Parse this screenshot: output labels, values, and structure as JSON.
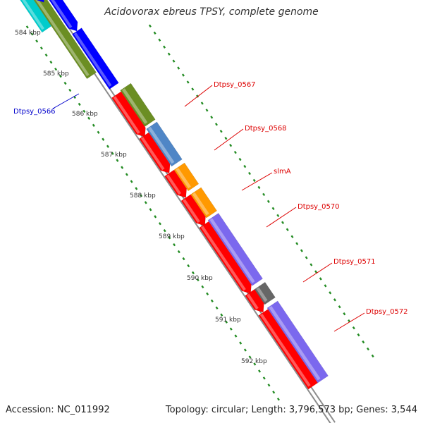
{
  "title": "Acidovorax ebreus TPSY, complete genome",
  "footer": {
    "accession": "Accession: NC_011992",
    "summary": "Topology: circular; Length: 3,796,573 bp; Genes: 3,544"
  },
  "ticks": [
    "584 kbp",
    "585 kbp",
    "586 kbp",
    "587 kbp",
    "588 kbp",
    "589 kbp",
    "590 kbp",
    "591 kbp",
    "592 kbp"
  ],
  "genes": [
    {
      "name": "Dtpsy_0566",
      "color": "#0000cc"
    },
    {
      "name": "Dtpsy_0567",
      "color": "#dd0000"
    },
    {
      "name": "Dtpsy_0568",
      "color": "#dd0000"
    },
    {
      "name": "slmA",
      "color": "#dd0000"
    },
    {
      "name": "Dtpsy_0570",
      "color": "#dd0000"
    },
    {
      "name": "Dtpsy_0571",
      "color": "#dd0000"
    },
    {
      "name": "Dtpsy_0572",
      "color": "#dd0000"
    }
  ],
  "colors": {
    "backbone": "#8c8c8c",
    "cds": "#ff0000",
    "olive": "#6b8e23",
    "steelblue": "#4f86c6",
    "orange": "#ff9900",
    "slate": "#7b68ee",
    "gray": "#666666",
    "blue": "#0000ff",
    "cyan": "#00cccc",
    "dots": "#228b22"
  }
}
